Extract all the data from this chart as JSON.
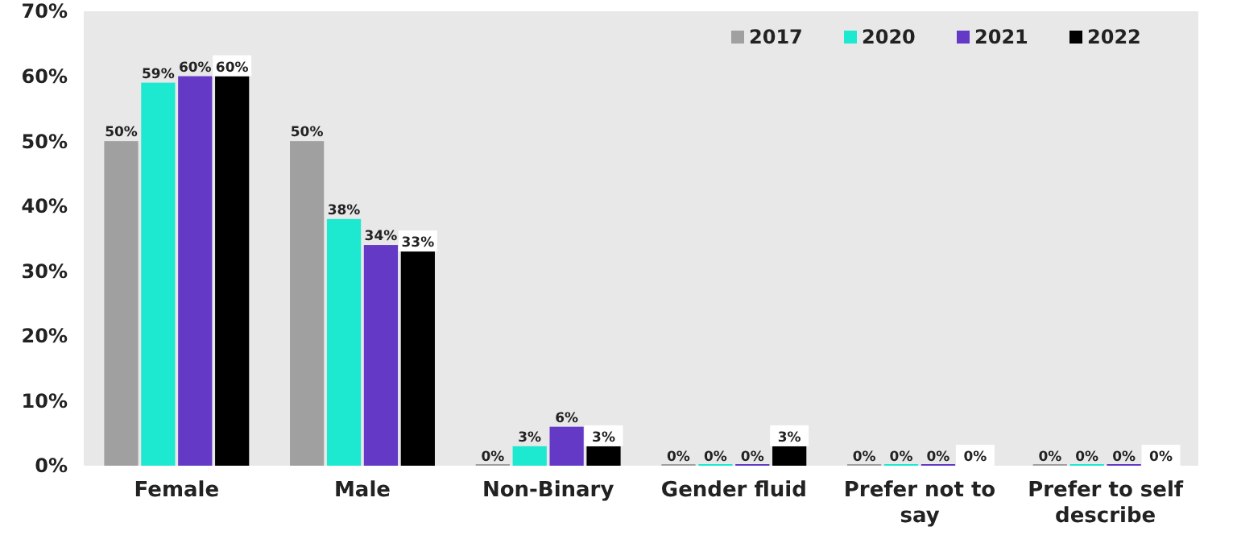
{
  "chart_data": {
    "type": "bar",
    "categories": [
      "Female",
      "Male",
      "Non-Binary",
      "Gender fluid",
      "Prefer not to say",
      "Prefer to self describe"
    ],
    "series": [
      {
        "name": "2017",
        "color": "#a0a0a0",
        "values": [
          50,
          50,
          0,
          0,
          0,
          0
        ],
        "value_labels": [
          "50%",
          "50%",
          "0%",
          "0%",
          "0%",
          "0%"
        ]
      },
      {
        "name": "2020",
        "color": "#1de8d0",
        "values": [
          59,
          38,
          3,
          0,
          0,
          0
        ],
        "value_labels": [
          "59%",
          "38%",
          "3%",
          "0%",
          "0%",
          "0%"
        ]
      },
      {
        "name": "2021",
        "color": "#6339c6",
        "values": [
          60,
          34,
          6,
          0,
          0,
          0
        ],
        "value_labels": [
          "60%",
          "34%",
          "6%",
          "0%",
          "0%",
          "0%"
        ]
      },
      {
        "name": "2022",
        "color": "#000000",
        "values": [
          60,
          33,
          3,
          3,
          0,
          0
        ],
        "value_labels": [
          "60%",
          "33%",
          "3%",
          "3%",
          "0%",
          "0%"
        ]
      }
    ],
    "ylim": [
      0,
      70
    ],
    "yticks": [
      {
        "value": 0,
        "label": "0%"
      },
      {
        "value": 10,
        "label": "10%"
      },
      {
        "value": 20,
        "label": "20%"
      },
      {
        "value": 30,
        "label": "30%"
      },
      {
        "value": 40,
        "label": "40%"
      },
      {
        "value": 50,
        "label": "50%"
      },
      {
        "value": 60,
        "label": "60%"
      },
      {
        "value": 70,
        "label": "70%"
      }
    ],
    "data_labels": true,
    "legend": "top right",
    "grid": false
  }
}
